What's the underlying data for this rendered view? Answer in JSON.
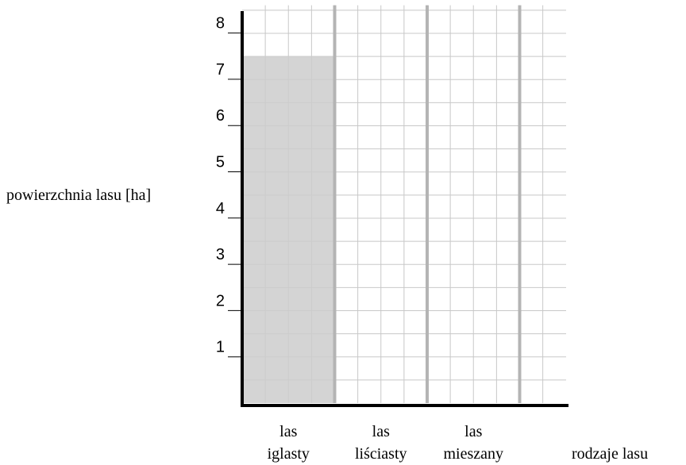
{
  "chart_data": {
    "type": "bar",
    "categories": [
      {
        "line1": "las",
        "line2": "iglasty"
      },
      {
        "line1": "las",
        "line2": "liściasty"
      },
      {
        "line1": "las",
        "line2": "mieszany"
      }
    ],
    "values": [
      7.5,
      null,
      null
    ],
    "ylabel": "powierzchnia lasu [ha]",
    "xlabel": "rodzaje lasu",
    "ylim": [
      0,
      8.6
    ],
    "yticks": [
      "1",
      "2",
      "3",
      "4",
      "5",
      "6",
      "7",
      "8"
    ],
    "grid": true,
    "bar_color": "#cccccc",
    "grid_color": "#c8c8c8",
    "separator_color": "#b4b4b4"
  }
}
